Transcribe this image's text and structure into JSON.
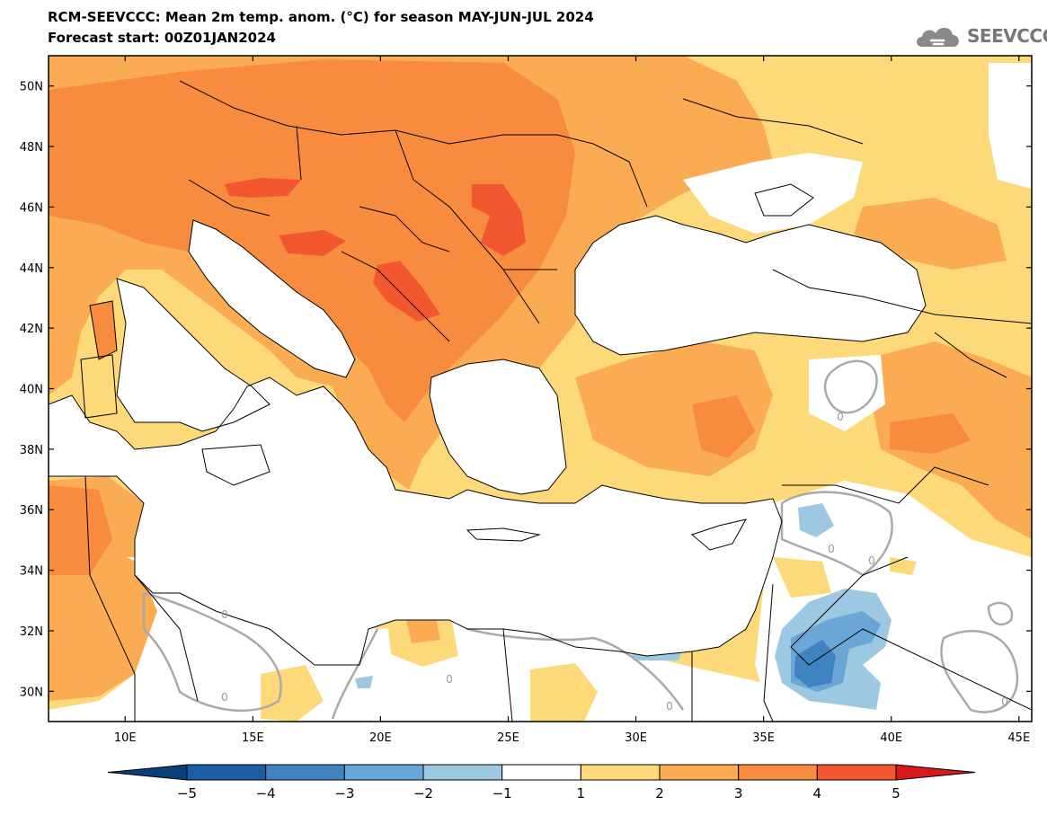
{
  "header": {
    "title_line1": "RCM-SEEVCCC: Mean 2m temp. anom. (°C) for season MAY-JUN-JUL 2024",
    "title_line2": "Forecast start: 00Z01JAN2024",
    "logo_text": "SEEVCCC",
    "logo_icon": "cloud-icon"
  },
  "map": {
    "lon_labels": [
      "10E",
      "15E",
      "20E",
      "25E",
      "30E",
      "35E",
      "40E",
      "45E"
    ],
    "lat_labels": [
      "50N",
      "48N",
      "46N",
      "44N",
      "42N",
      "40N",
      "38N",
      "36N",
      "34N",
      "32N",
      "30N"
    ],
    "lon_values": [
      10,
      15,
      20,
      25,
      30,
      35,
      40,
      45
    ],
    "lat_values": [
      50,
      48,
      46,
      44,
      42,
      40,
      38,
      36,
      34,
      32,
      30
    ],
    "lon_range": [
      7,
      45.5
    ],
    "lat_range": [
      29,
      51
    ],
    "contour_labels": [
      "0",
      "0",
      "0",
      "0",
      "0",
      "0",
      "0",
      "0"
    ],
    "colors": {
      "a1": "#fdd97a",
      "a2": "#fbab52",
      "a3": "#f88c3e",
      "a4": "#f2572f",
      "a5": "#d7191c",
      "n1": "#9cc8e2",
      "n2": "#6aa7d6",
      "n3": "#3f83c1",
      "n4": "#1c5ea4",
      "n5": "#0b3f78",
      "neutral": "#ffffff"
    }
  },
  "colorbar": {
    "labels": [
      "-5",
      "-4",
      "-3",
      "-2",
      "-1",
      "1",
      "2",
      "3",
      "4",
      "5"
    ],
    "colors": [
      "#0b3f78",
      "#1c5ea4",
      "#3f83c1",
      "#6aa7d6",
      "#9cc8e2",
      "#ffffff",
      "#fdd97a",
      "#fbab52",
      "#f88c3e",
      "#f2572f",
      "#d7191c"
    ]
  }
}
